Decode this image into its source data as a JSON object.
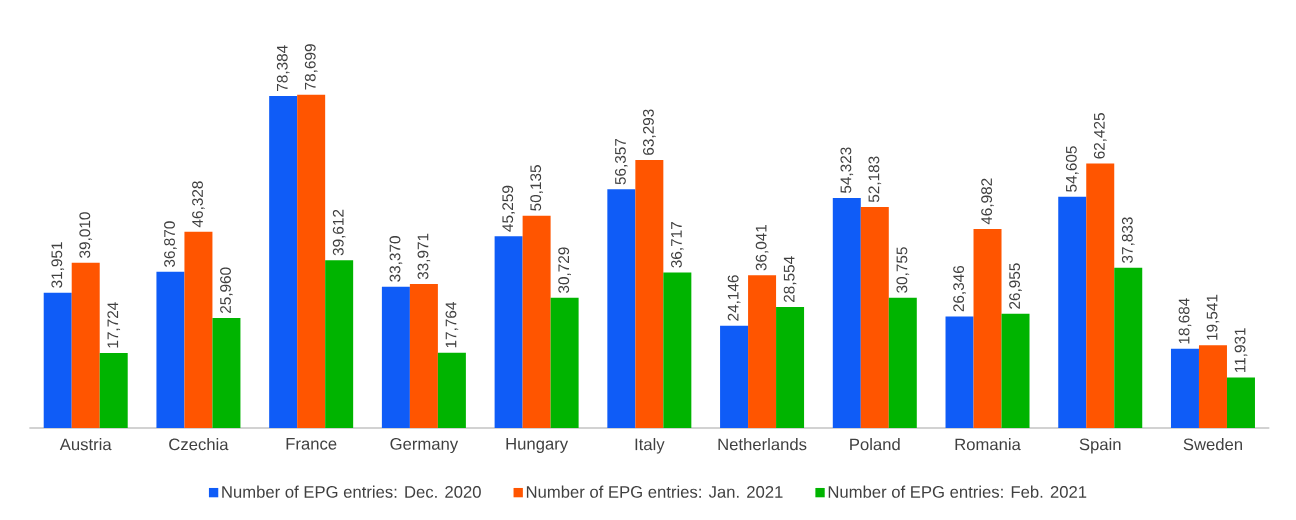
{
  "chart_data": {
    "type": "bar",
    "categories": [
      "Austria",
      "Czechia",
      "France",
      "Germany",
      "Hungary",
      "Italy",
      "Netherlands",
      "Poland",
      "Romania",
      "Spain",
      "Sweden"
    ],
    "legend": "bottom",
    "series": [
      {
        "name": "Number of EPG entries: Dec. 2020",
        "color": "#0f5cf7",
        "values": [
          31951,
          36870,
          78384,
          33370,
          45259,
          56357,
          24146,
          54323,
          26346,
          54605,
          18684
        ],
        "value_labels": [
          "31,951",
          "36,870",
          "78,384",
          "33,370",
          "45,259",
          "56,357",
          "24,146",
          "54,323",
          "26,346",
          "54,605",
          "18,684"
        ]
      },
      {
        "name": "Number of EPG entries: Jan. 2021",
        "color": "#ff5500",
        "values": [
          39010,
          46328,
          78699,
          33971,
          50135,
          63293,
          36041,
          52183,
          46982,
          62425,
          19541
        ],
        "value_labels": [
          "39,010",
          "46,328",
          "78,699",
          "33,971",
          "50,135",
          "63,293",
          "36,041",
          "52,183",
          "46,982",
          "62,425",
          "19,541"
        ]
      },
      {
        "name": "Number of EPG entries: Feb. 2021",
        "color": "#00b400",
        "values": [
          17724,
          25960,
          39612,
          17764,
          30729,
          36717,
          28554,
          30755,
          26955,
          37833,
          11931
        ],
        "value_labels": [
          "17,724",
          "25,960",
          "39,612",
          "17,764",
          "30,729",
          "36,717",
          "28,554",
          "30,755",
          "26,955",
          "37,833",
          "11,931"
        ]
      }
    ]
  }
}
